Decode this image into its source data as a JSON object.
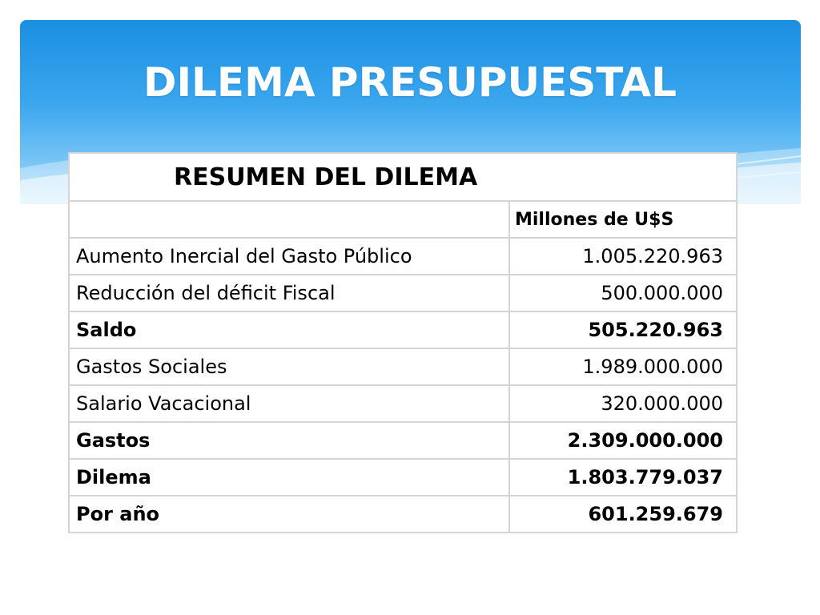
{
  "slide": {
    "title": "DILEMA PRESUPUESTAL"
  },
  "table": {
    "title": "RESUMEN DEL DILEMA",
    "unit_header": "Millones de U$S",
    "rows": [
      {
        "label": "Aumento Inercial del Gasto Público",
        "value": "1.005.220.963",
        "bold": false
      },
      {
        "label": "Reducción del déficit Fiscal",
        "value": "500.000.000",
        "bold": false
      },
      {
        "label": "Saldo",
        "value": "505.220.963",
        "bold": true
      },
      {
        "label": "Gastos Sociales",
        "value": "1.989.000.000",
        "bold": false
      },
      {
        "label": "Salario Vacacional",
        "value": "320.000.000",
        "bold": false
      },
      {
        "label": "Gastos",
        "value": "2.309.000.000",
        "bold": true
      },
      {
        "label": "Dilema",
        "value": "1.803.779.037",
        "bold": true
      },
      {
        "label": "Por año",
        "value": "601.259.679",
        "bold": true
      }
    ]
  },
  "colors": {
    "banner_top": "#1b8fe2",
    "banner_bottom": "#b9e2fb",
    "grid": "#d4d4d4"
  }
}
